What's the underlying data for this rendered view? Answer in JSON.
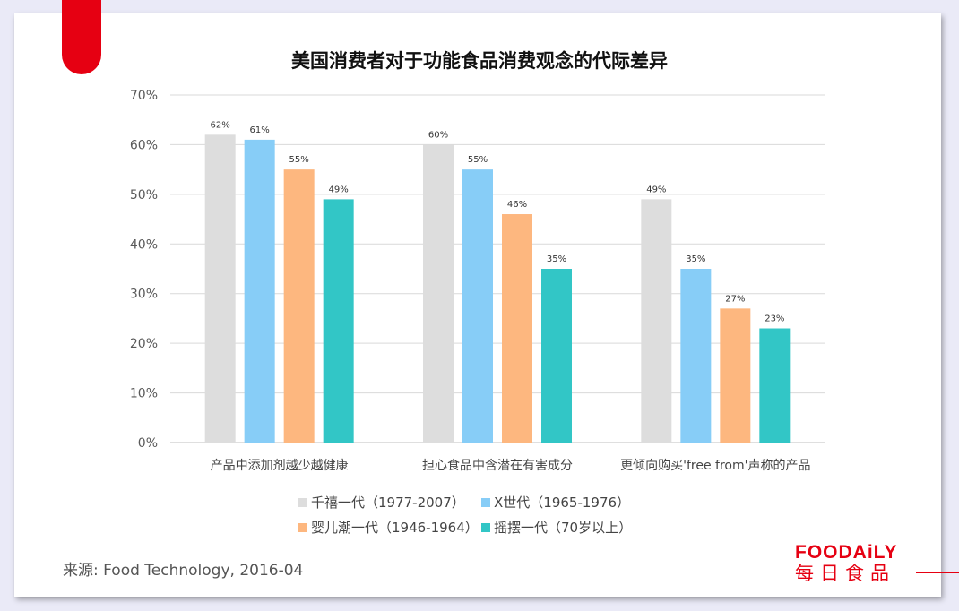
{
  "colors": {
    "accent": "#e60012",
    "series": [
      "#dddddd",
      "#87cdf7",
      "#fdb77f",
      "#32c6c6"
    ],
    "grid": "#d9d9d9",
    "axis_text": "#595959"
  },
  "source": "来源: Food Technology, 2016-04",
  "logo": {
    "en": "FOODAiLY",
    "cn": "每日食品"
  },
  "chart_data": {
    "type": "bar",
    "title": "美国消费者对于功能食品消费观念的代际差异",
    "categories": [
      "产品中添加剂越少越健康",
      "担心食品中含潜在有害成分",
      "更倾向购买'free from'声称的产品"
    ],
    "series": [
      {
        "name": "千禧一代（1977-2007）",
        "values": [
          62,
          60,
          49
        ]
      },
      {
        "name": "X世代（1965-1976）",
        "values": [
          61,
          55,
          35
        ]
      },
      {
        "name": "婴儿潮一代（1946-1964）",
        "values": [
          55,
          46,
          27
        ]
      },
      {
        "name": "摇摆一代（70岁以上）",
        "values": [
          49,
          35,
          23
        ]
      }
    ],
    "ylim": [
      0,
      70
    ],
    "yticks": [
      "0%",
      "10%",
      "20%",
      "30%",
      "40%",
      "50%",
      "60%",
      "70%"
    ],
    "value_suffix": "%",
    "grid": true,
    "legend_position": "bottom"
  }
}
